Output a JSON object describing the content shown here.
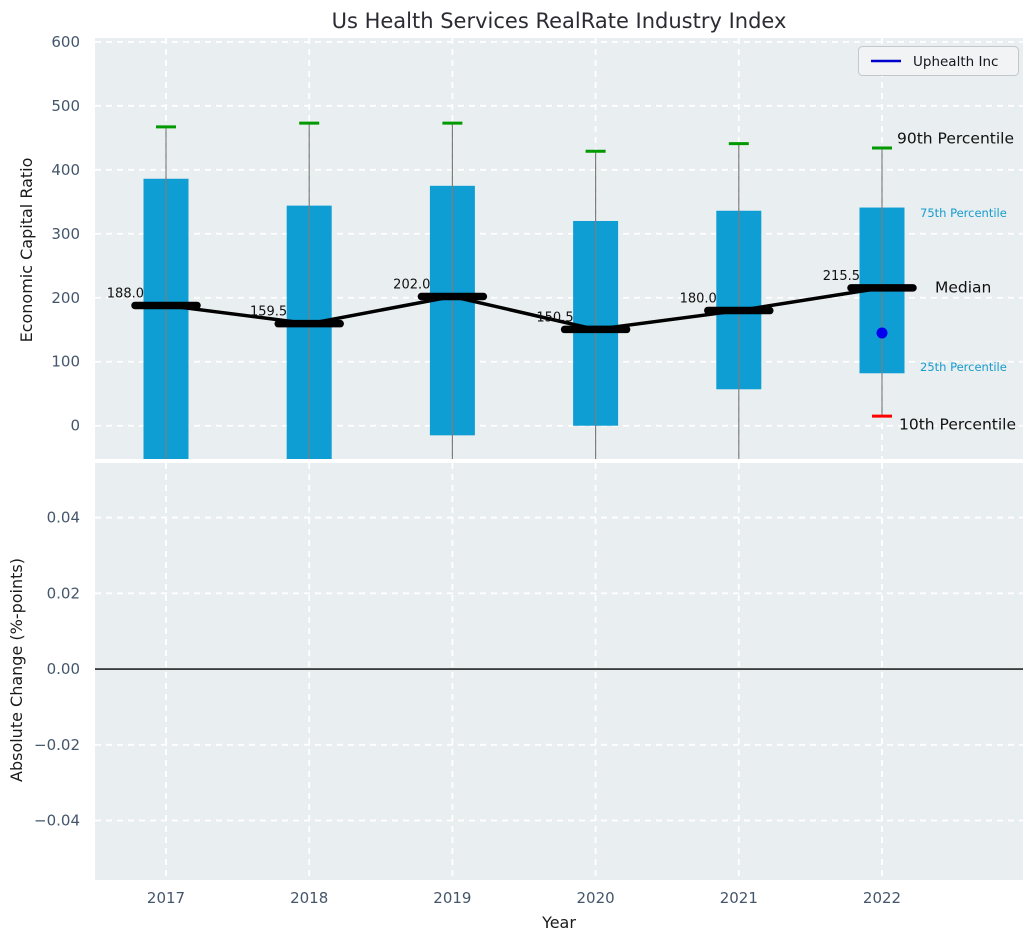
{
  "title": "Us Health Services RealRate Industry Index",
  "legend": {
    "label": "Uphealth Inc",
    "position": "upper right"
  },
  "colors": {
    "bar": "#0f9ed3",
    "p90_cap": "#009a00",
    "p10_cap": "#ff0000",
    "median_line": "#000000",
    "company_point": "#0000ee",
    "legend_line": "#0000cc",
    "accent_text": "#169cce",
    "tick_text": "#44566b",
    "plot_bg": "#e9eef0",
    "grid": "#ffffff",
    "whisker": "#7d7d7d"
  },
  "chart_data": {
    "type": "box",
    "title": "Us Health Services RealRate Industry Index",
    "xlabel": "Year",
    "categories": [
      "2017",
      "2018",
      "2019",
      "2020",
      "2021",
      "2022"
    ],
    "series": [
      {
        "name": "90th Percentile",
        "values": [
          467,
          473,
          473,
          429,
          441,
          434
        ]
      },
      {
        "name": "75th Percentile",
        "values": [
          386,
          344,
          375,
          320,
          336,
          341
        ]
      },
      {
        "name": "Median",
        "values": [
          188.0,
          159.5,
          202.0,
          150.5,
          180.0,
          215.5
        ]
      },
      {
        "name": "25th Percentile",
        "values": [
          null,
          null,
          -15,
          0,
          57,
          82
        ]
      },
      {
        "name": "10th Percentile",
        "values": [
          null,
          null,
          null,
          null,
          null,
          15
        ]
      }
    ],
    "median_labels": [
      "188.0",
      "159.5",
      "202.0",
      "150.5",
      "180.0",
      "215.5"
    ],
    "company_point": {
      "name": "Uphealth Inc",
      "category": "2022",
      "value": 145
    },
    "clipping_note": "null values lie below the visible axis range; bars/whiskers are clipped at the subplot bottom",
    "top_axis": {
      "ylabel": "Economic Capital Ratio",
      "tick_values": [
        0,
        100,
        200,
        300,
        400,
        500,
        600
      ],
      "tick_labels": [
        "0",
        "100",
        "200",
        "300",
        "400",
        "500",
        "600"
      ],
      "ylim": [
        -52,
        606
      ],
      "grid": true
    },
    "bottom_axis": {
      "ylabel": "Absolute Change (%-points)",
      "tick_values": [
        0.04,
        0.02,
        0,
        -0.02,
        -0.04
      ],
      "tick_labels": [
        "0.04",
        "0.02",
        "0.00",
        "−0.02",
        "−0.04"
      ],
      "ylim": [
        -0.0557,
        0.0544
      ],
      "zero_line": true,
      "grid": true
    },
    "percentile_annotations": [
      "90th Percentile",
      "75th Percentile",
      "Median",
      "25th Percentile",
      "10th Percentile"
    ]
  }
}
